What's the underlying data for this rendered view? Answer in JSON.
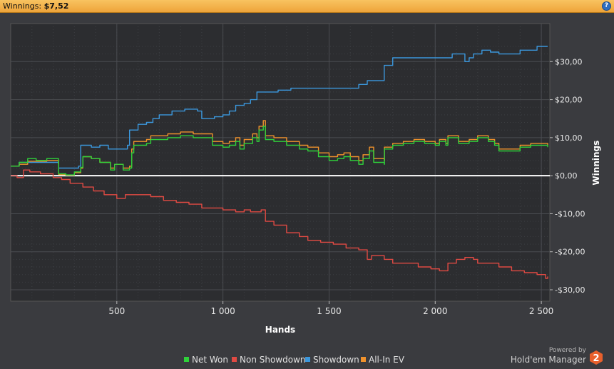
{
  "header": {
    "label": "Winnings:",
    "value": "$7,52",
    "help_icon": "question-mark-icon"
  },
  "branding": {
    "powered_by": "Powered by",
    "product": "Hold'em Manager",
    "logo_text": "2"
  },
  "chart_data": {
    "type": "line",
    "xlabel": "Hands",
    "ylabel": "Winnings",
    "xlim": [
      0,
      2540
    ],
    "ylim": [
      -33,
      40
    ],
    "x_ticks": [
      500,
      1000,
      1500,
      2000,
      2500
    ],
    "x_tick_labels": [
      "500",
      "1 000",
      "1 500",
      "2 000",
      "2 500"
    ],
    "y_ticks": [
      30,
      20,
      10,
      0,
      -10,
      -20,
      -30
    ],
    "y_tick_labels": [
      "$30,00",
      "$20,00",
      "$10,00",
      "$0,00",
      "-$10,00",
      "-$20,00",
      "-$30,00"
    ],
    "grid": true,
    "legend_position": "bottom-center",
    "zero_line": true,
    "series": [
      {
        "name": "Net Won",
        "color": "#2fd13a",
        "points": [
          [
            0,
            2.5
          ],
          [
            40,
            3.5
          ],
          [
            80,
            4.5
          ],
          [
            120,
            4
          ],
          [
            170,
            4.5
          ],
          [
            200,
            4.5
          ],
          [
            225,
            3.5
          ],
          [
            226,
            0.5
          ],
          [
            260,
            0.2
          ],
          [
            300,
            1
          ],
          [
            330,
            2.2
          ],
          [
            340,
            5
          ],
          [
            380,
            4.5
          ],
          [
            420,
            3.5
          ],
          [
            470,
            1.5
          ],
          [
            490,
            3
          ],
          [
            530,
            1.5
          ],
          [
            560,
            2
          ],
          [
            570,
            6
          ],
          [
            580,
            8
          ],
          [
            640,
            8.5
          ],
          [
            660,
            9.5
          ],
          [
            700,
            9.5
          ],
          [
            740,
            10
          ],
          [
            800,
            10.5
          ],
          [
            860,
            10
          ],
          [
            900,
            10
          ],
          [
            950,
            8
          ],
          [
            1000,
            7.5
          ],
          [
            1030,
            8
          ],
          [
            1060,
            9
          ],
          [
            1080,
            7
          ],
          [
            1100,
            8.5
          ],
          [
            1140,
            10
          ],
          [
            1160,
            9
          ],
          [
            1170,
            12
          ],
          [
            1190,
            13
          ],
          [
            1200,
            9.5
          ],
          [
            1240,
            9
          ],
          [
            1300,
            8
          ],
          [
            1360,
            7
          ],
          [
            1400,
            6.5
          ],
          [
            1450,
            5
          ],
          [
            1500,
            4
          ],
          [
            1540,
            4.5
          ],
          [
            1570,
            5
          ],
          [
            1600,
            4
          ],
          [
            1640,
            3
          ],
          [
            1660,
            4.5
          ],
          [
            1690,
            6.5
          ],
          [
            1710,
            3.5
          ],
          [
            1760,
            3
          ],
          [
            1761,
            7
          ],
          [
            1800,
            8
          ],
          [
            1850,
            8.5
          ],
          [
            1900,
            9
          ],
          [
            1950,
            8.5
          ],
          [
            2000,
            8
          ],
          [
            2020,
            9
          ],
          [
            2050,
            8
          ],
          [
            2060,
            10
          ],
          [
            2100,
            10
          ],
          [
            2110,
            8.5
          ],
          [
            2160,
            9
          ],
          [
            2200,
            10
          ],
          [
            2250,
            9
          ],
          [
            2280,
            8
          ],
          [
            2300,
            6.5
          ],
          [
            2350,
            6.5
          ],
          [
            2400,
            7.5
          ],
          [
            2450,
            8
          ],
          [
            2500,
            8
          ],
          [
            2530,
            7.5
          ]
        ]
      },
      {
        "name": "Non Showdown",
        "color": "#e04a43",
        "points": [
          [
            0,
            0
          ],
          [
            30,
            -0.5
          ],
          [
            60,
            1.5
          ],
          [
            90,
            1
          ],
          [
            140,
            0.5
          ],
          [
            200,
            -0.5
          ],
          [
            240,
            -1
          ],
          [
            280,
            -2
          ],
          [
            340,
            -3
          ],
          [
            390,
            -4
          ],
          [
            440,
            -5
          ],
          [
            500,
            -6
          ],
          [
            540,
            -5
          ],
          [
            600,
            -5
          ],
          [
            660,
            -5.5
          ],
          [
            720,
            -6.5
          ],
          [
            780,
            -7
          ],
          [
            840,
            -7.5
          ],
          [
            900,
            -8.5
          ],
          [
            960,
            -8.5
          ],
          [
            1000,
            -9
          ],
          [
            1060,
            -9.5
          ],
          [
            1100,
            -9
          ],
          [
            1130,
            -9.5
          ],
          [
            1180,
            -9
          ],
          [
            1200,
            -12
          ],
          [
            1240,
            -13
          ],
          [
            1300,
            -15
          ],
          [
            1360,
            -16
          ],
          [
            1400,
            -17
          ],
          [
            1460,
            -17.5
          ],
          [
            1520,
            -18
          ],
          [
            1580,
            -19
          ],
          [
            1640,
            -19.5
          ],
          [
            1680,
            -22
          ],
          [
            1700,
            -21
          ],
          [
            1760,
            -22
          ],
          [
            1800,
            -23
          ],
          [
            1860,
            -23
          ],
          [
            1920,
            -24
          ],
          [
            1980,
            -24.5
          ],
          [
            2020,
            -25
          ],
          [
            2060,
            -23
          ],
          [
            2100,
            -22
          ],
          [
            2140,
            -21.5
          ],
          [
            2180,
            -22
          ],
          [
            2200,
            -23
          ],
          [
            2260,
            -23
          ],
          [
            2300,
            -24
          ],
          [
            2360,
            -25
          ],
          [
            2420,
            -25.5
          ],
          [
            2480,
            -26
          ],
          [
            2520,
            -27
          ],
          [
            2530,
            -26.5
          ]
        ]
      },
      {
        "name": "Showdown",
        "color": "#3b97dc",
        "points": [
          [
            0,
            2.5
          ],
          [
            40,
            3.5
          ],
          [
            80,
            3.5
          ],
          [
            120,
            3.5
          ],
          [
            170,
            3.5
          ],
          [
            200,
            3.5
          ],
          [
            220,
            3.5
          ],
          [
            226,
            2
          ],
          [
            260,
            2
          ],
          [
            300,
            2
          ],
          [
            320,
            2.5
          ],
          [
            330,
            8
          ],
          [
            350,
            8
          ],
          [
            380,
            7.5
          ],
          [
            420,
            8
          ],
          [
            460,
            7
          ],
          [
            490,
            7
          ],
          [
            520,
            7
          ],
          [
            550,
            8
          ],
          [
            560,
            12
          ],
          [
            580,
            12
          ],
          [
            600,
            13.5
          ],
          [
            640,
            14
          ],
          [
            670,
            15
          ],
          [
            700,
            16
          ],
          [
            760,
            17
          ],
          [
            820,
            17.5
          ],
          [
            880,
            17
          ],
          [
            900,
            15
          ],
          [
            960,
            15.5
          ],
          [
            1000,
            16
          ],
          [
            1030,
            17
          ],
          [
            1060,
            18.5
          ],
          [
            1100,
            19
          ],
          [
            1130,
            20
          ],
          [
            1160,
            22
          ],
          [
            1200,
            22
          ],
          [
            1260,
            22.5
          ],
          [
            1300,
            22.5
          ],
          [
            1320,
            23
          ],
          [
            1380,
            23
          ],
          [
            1400,
            23
          ],
          [
            1460,
            23
          ],
          [
            1500,
            23
          ],
          [
            1560,
            23
          ],
          [
            1600,
            23
          ],
          [
            1640,
            24
          ],
          [
            1680,
            25
          ],
          [
            1740,
            25
          ],
          [
            1760,
            29
          ],
          [
            1800,
            31
          ],
          [
            1860,
            31
          ],
          [
            1900,
            31
          ],
          [
            1980,
            31
          ],
          [
            2060,
            31
          ],
          [
            2080,
            32
          ],
          [
            2120,
            32
          ],
          [
            2140,
            30
          ],
          [
            2160,
            31
          ],
          [
            2180,
            32
          ],
          [
            2220,
            33
          ],
          [
            2260,
            32.5
          ],
          [
            2300,
            32
          ],
          [
            2340,
            32
          ],
          [
            2400,
            33
          ],
          [
            2440,
            33
          ],
          [
            2480,
            34
          ],
          [
            2520,
            34
          ],
          [
            2530,
            34
          ]
        ]
      },
      {
        "name": "All-In EV",
        "color": "#f0922c",
        "points": [
          [
            0,
            2.5
          ],
          [
            40,
            3
          ],
          [
            80,
            3.8
          ],
          [
            120,
            3.8
          ],
          [
            170,
            4
          ],
          [
            200,
            4
          ],
          [
            225,
            3.2
          ],
          [
            226,
            0.3
          ],
          [
            260,
            0.1
          ],
          [
            300,
            0.8
          ],
          [
            330,
            2
          ],
          [
            340,
            5
          ],
          [
            380,
            4.5
          ],
          [
            420,
            3.5
          ],
          [
            470,
            2
          ],
          [
            490,
            3
          ],
          [
            530,
            2
          ],
          [
            560,
            2.5
          ],
          [
            570,
            7
          ],
          [
            580,
            9
          ],
          [
            640,
            9.5
          ],
          [
            660,
            10.5
          ],
          [
            700,
            10.5
          ],
          [
            740,
            11
          ],
          [
            800,
            11.5
          ],
          [
            860,
            11
          ],
          [
            900,
            11
          ],
          [
            950,
            9
          ],
          [
            1000,
            8.5
          ],
          [
            1030,
            9
          ],
          [
            1060,
            10
          ],
          [
            1080,
            8
          ],
          [
            1100,
            9.5
          ],
          [
            1140,
            11
          ],
          [
            1160,
            10
          ],
          [
            1170,
            13
          ],
          [
            1190,
            14.5
          ],
          [
            1200,
            10.5
          ],
          [
            1240,
            10
          ],
          [
            1300,
            9
          ],
          [
            1360,
            8
          ],
          [
            1400,
            7.5
          ],
          [
            1450,
            6
          ],
          [
            1500,
            5
          ],
          [
            1540,
            5.5
          ],
          [
            1570,
            6
          ],
          [
            1600,
            5
          ],
          [
            1640,
            4
          ],
          [
            1660,
            5.5
          ],
          [
            1690,
            7.5
          ],
          [
            1710,
            4.5
          ],
          [
            1760,
            4
          ],
          [
            1761,
            7.5
          ],
          [
            1800,
            8.5
          ],
          [
            1850,
            9
          ],
          [
            1900,
            9.5
          ],
          [
            1950,
            9
          ],
          [
            2000,
            8.5
          ],
          [
            2020,
            9.5
          ],
          [
            2050,
            8.5
          ],
          [
            2060,
            10.5
          ],
          [
            2100,
            10.5
          ],
          [
            2110,
            9
          ],
          [
            2160,
            9.5
          ],
          [
            2200,
            10.5
          ],
          [
            2250,
            9.5
          ],
          [
            2280,
            8.5
          ],
          [
            2300,
            7
          ],
          [
            2350,
            7
          ],
          [
            2400,
            8
          ],
          [
            2450,
            8.5
          ],
          [
            2500,
            8.5
          ],
          [
            2530,
            8
          ]
        ]
      }
    ]
  }
}
